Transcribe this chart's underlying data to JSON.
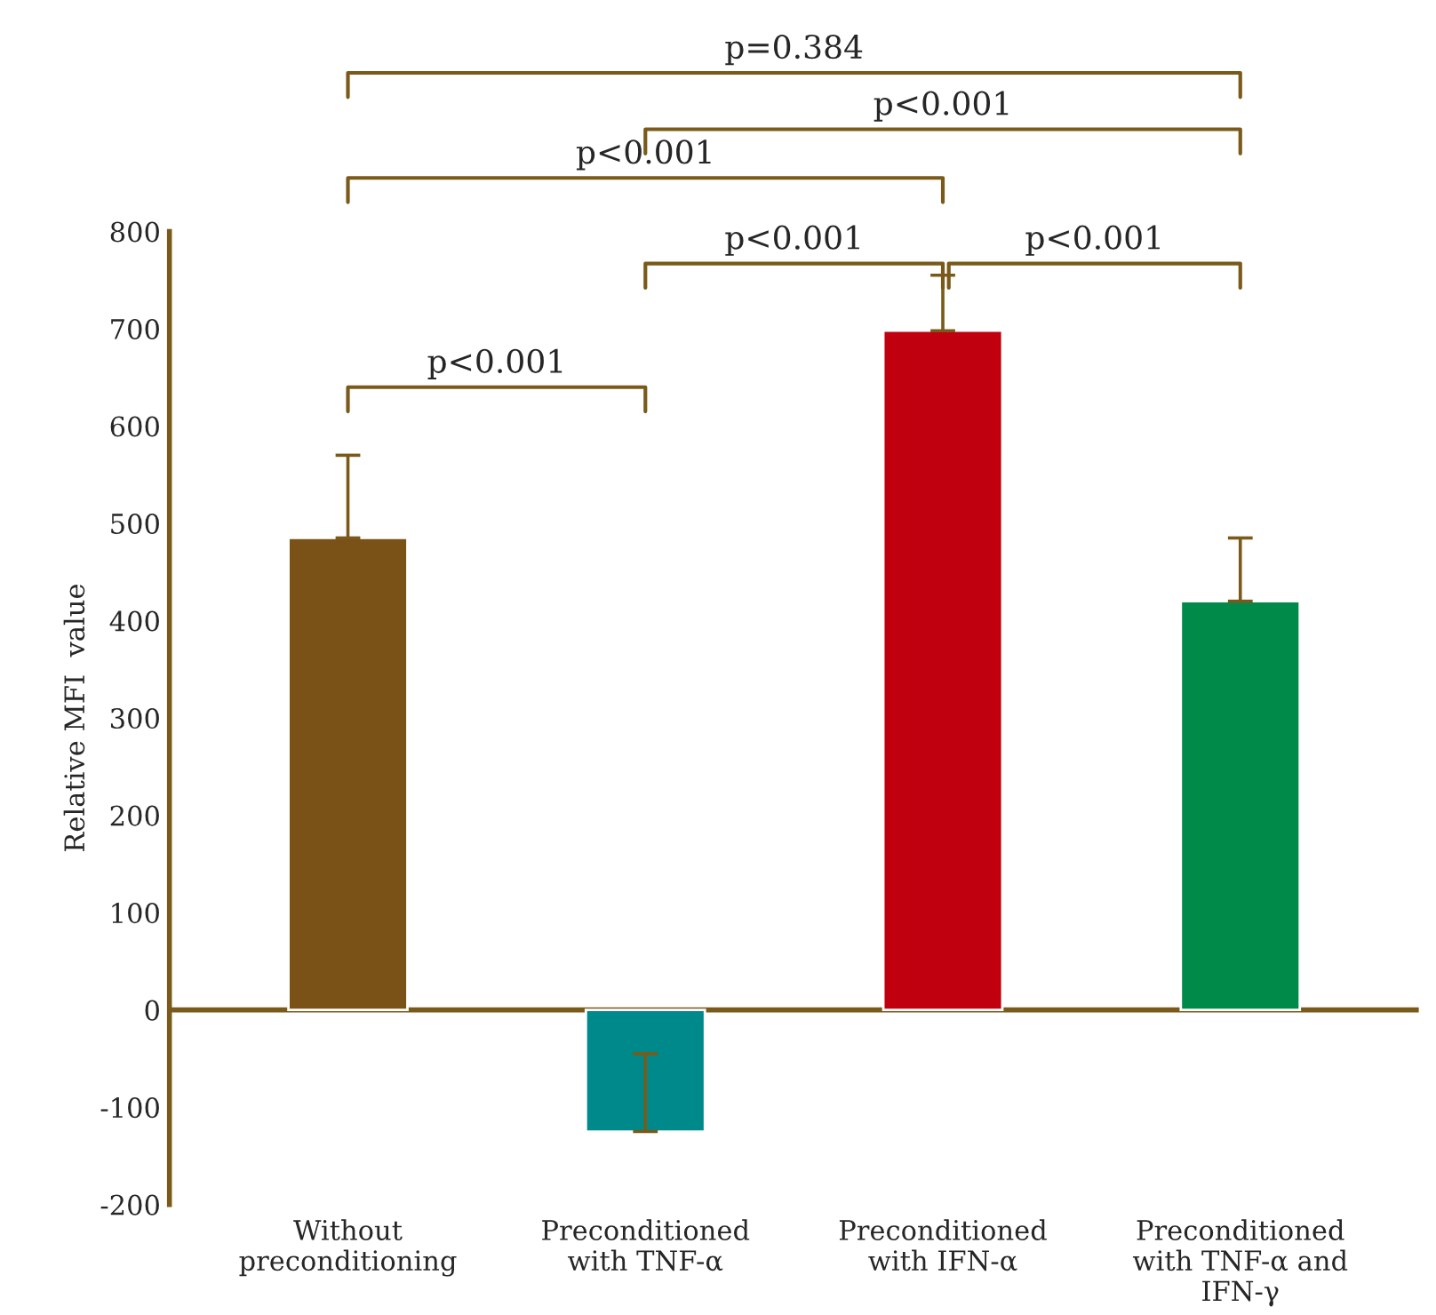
{
  "chart_data": {
    "type": "bar",
    "ylabel": "Relative MFI  value",
    "categories": [
      "Without\npreconditioning",
      "Preconditioned\nwith TNF-α",
      "Preconditioned\nwith IFN-α",
      "Preconditioned\nwith TNF-α and\nIFN-γ"
    ],
    "values": [
      485,
      -125,
      698,
      420
    ],
    "errors": [
      [
        485,
        570
      ],
      [
        -125,
        -45
      ],
      [
        698,
        755
      ],
      [
        420,
        485
      ]
    ],
    "colors": [
      "#7a5218",
      "#00898a",
      "#c0000f",
      "#008a4a"
    ],
    "ylim": [
      -200,
      800
    ],
    "yticks": [
      -200,
      -100,
      0,
      100,
      200,
      300,
      400,
      500,
      600,
      700,
      800
    ],
    "grid": false,
    "ref_lines": [
      {
        "axis": "y",
        "value": 0,
        "color": "#7a5a1a"
      }
    ],
    "annotations": [
      "p=0.384",
      "p<0.001",
      "p<0.001",
      "p<0.001",
      "p<0.001",
      "p<0.001"
    ]
  }
}
